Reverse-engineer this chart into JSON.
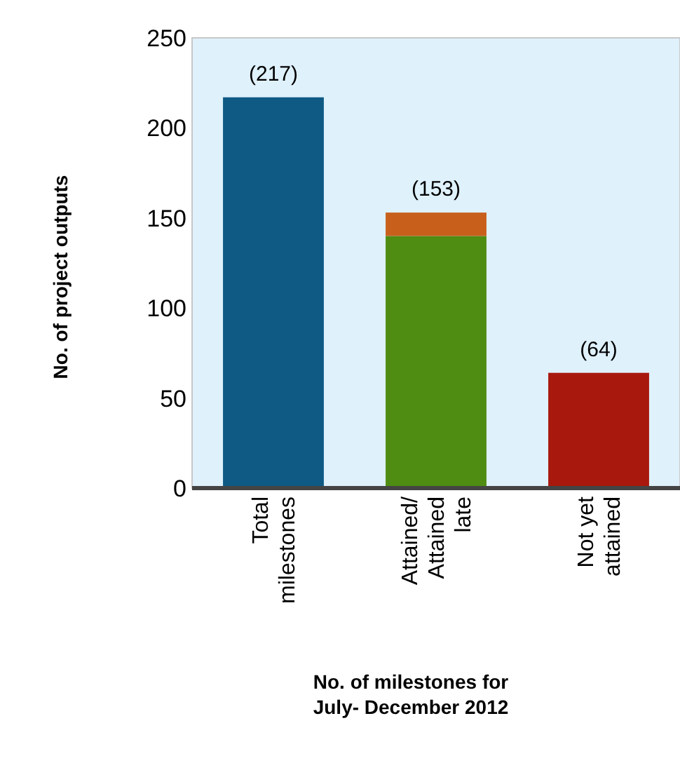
{
  "chart_data": {
    "type": "bar",
    "stacked": true,
    "xlabel": "No. of milestones for\nJuly- December 2012",
    "ylabel": "No. of project outputs",
    "categories": [
      "Total\nmilestones",
      "Attained/\nAttained\nlate",
      "Not yet\nattained"
    ],
    "series": [
      {
        "colors": [
          "#0f5a84",
          "#4f8c12",
          "#a8180c"
        ],
        "values": [
          217,
          140,
          64
        ]
      },
      {
        "color": "#c8601c",
        "values": [
          null,
          13,
          null
        ]
      }
    ],
    "totals": [
      "(217)",
      "(153)",
      "(64)"
    ],
    "ylim": [
      0,
      250
    ],
    "yticks": [
      0,
      50,
      100,
      150,
      200,
      250
    ],
    "grid": false
  }
}
